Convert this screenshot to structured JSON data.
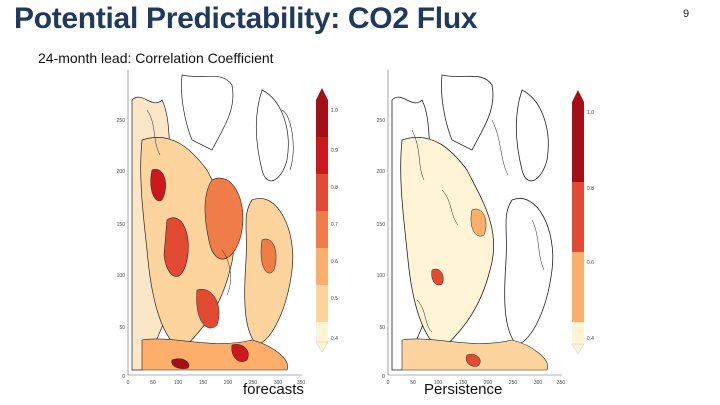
{
  "slide": {
    "title": "Potential Predictability:  CO2 Flux",
    "page_number": "9",
    "subtitle": "24-month lead:  Correlation Coefficient"
  },
  "panels": [
    {
      "caption": "forecasts",
      "y_ticks": [
        "250",
        "200",
        "150",
        "100",
        "50",
        "0"
      ],
      "x_ticks": [
        "0",
        "50",
        "100",
        "150",
        "200",
        "250",
        "300",
        "350"
      ],
      "colorbar_ticks": [
        "1.0",
        "0.9",
        "0.8",
        "0.7",
        "0.6",
        "0.5",
        "0.4"
      ],
      "colors": [
        "#a50f15",
        "#cb181d",
        "#e34a33",
        "#f07c4a",
        "#fdae6b",
        "#fdd49e",
        "#fff5d6"
      ]
    },
    {
      "caption": "Persistence",
      "y_ticks": [
        "250",
        "200",
        "150",
        "100",
        "50",
        "0"
      ],
      "x_ticks": [
        "0",
        "50",
        "100",
        "150",
        "200",
        "250",
        "300",
        "350"
      ],
      "colorbar_ticks": [
        "1.0",
        "0.8",
        "0.6",
        "0.4"
      ],
      "colors": [
        "#a50f15",
        "#e34a33",
        "#fdae6b",
        "#fff5d6"
      ]
    }
  ]
}
